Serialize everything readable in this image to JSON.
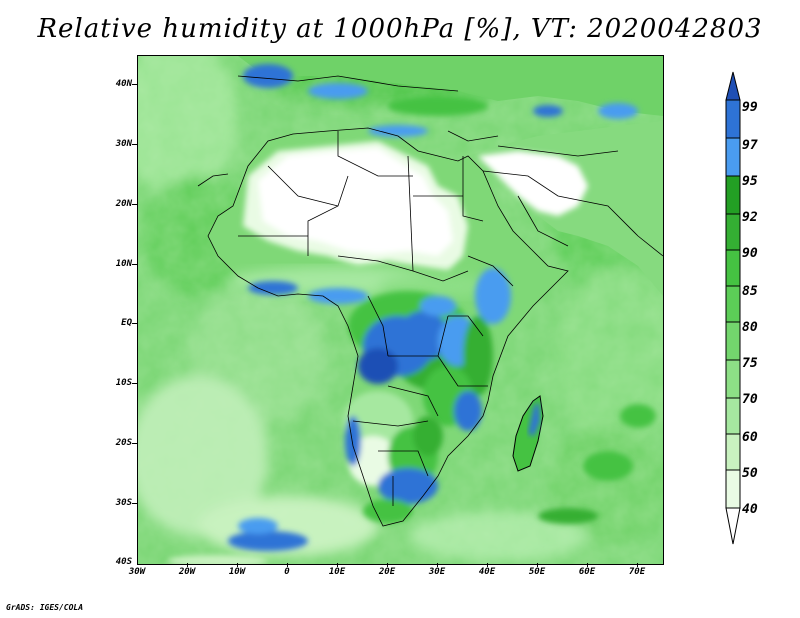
{
  "title": "Relative humidity at 1000hPa [%], VT: 2020042803",
  "footer": "GrADS: IGES/COLA",
  "map": {
    "lat_ticks": [
      "40N",
      "30N",
      "20N",
      "10N",
      "EQ",
      "10S",
      "20S",
      "30S",
      "40S"
    ],
    "lon_ticks": [
      "30W",
      "20W",
      "10W",
      "0",
      "10E",
      "20E",
      "30E",
      "40E",
      "50E",
      "60E",
      "70E"
    ],
    "lat_range": [
      -40,
      45
    ],
    "lon_range": [
      -30,
      75
    ]
  },
  "colorbar": {
    "levels": [
      "40",
      "50",
      "60",
      "70",
      "75",
      "80",
      "85",
      "90",
      "92",
      "95",
      "97",
      "99"
    ],
    "colors": {
      "lt40": "#ffffff",
      "40_50": "#e9fbe4",
      "50_60": "#c9f2c0",
      "60_70": "#a6e8a0",
      "70_75": "#8ddf86",
      "75_80": "#73d66d",
      "80_85": "#5ccd57",
      "85_90": "#45c242",
      "90_92": "#34af33",
      "92_95": "#239f24",
      "95_97": "#4a9cf0",
      "97_99": "#2e73d6",
      "gt99": "#1f4fb5"
    }
  }
}
